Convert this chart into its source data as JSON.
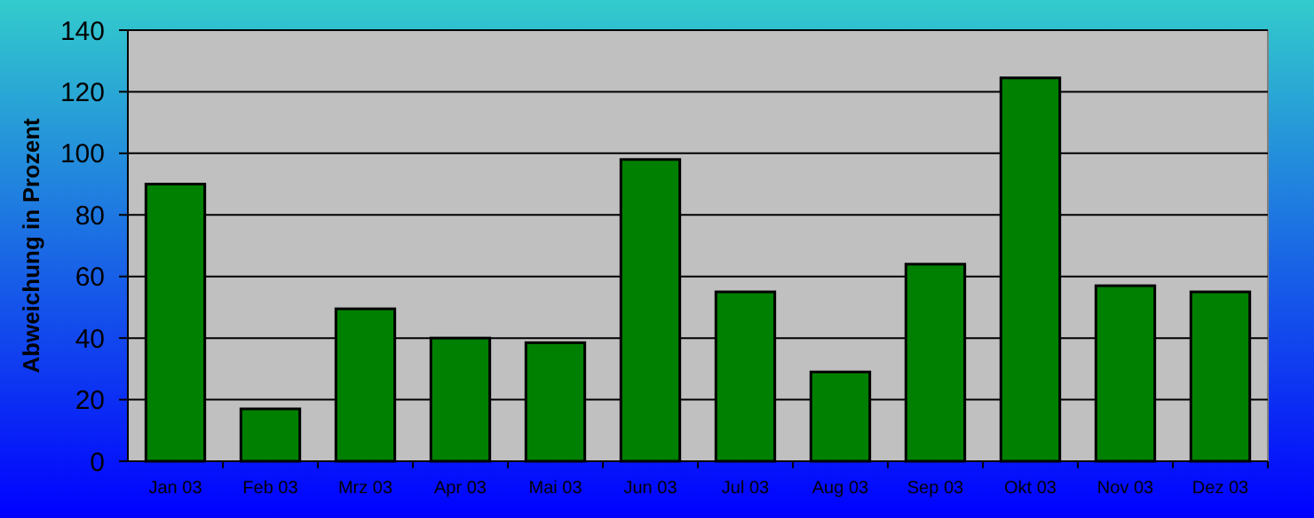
{
  "chart_data": {
    "type": "bar",
    "ylabel": "Abweichung in Prozent",
    "categories": [
      "Jan 03",
      "Feb 03",
      "Mrz 03",
      "Apr 03",
      "Mai 03",
      "Jun 03",
      "Jul 03",
      "Aug 03",
      "Sep 03",
      "Okt 03",
      "Nov 03",
      "Dez 03"
    ],
    "values": [
      90,
      17,
      49.5,
      40,
      38.5,
      98,
      55,
      29,
      64,
      124.5,
      57,
      55
    ],
    "color": "#008000",
    "ylim": [
      0,
      140
    ],
    "yticks": [
      0,
      20,
      40,
      60,
      80,
      100,
      120,
      140
    ],
    "grid": "y"
  }
}
